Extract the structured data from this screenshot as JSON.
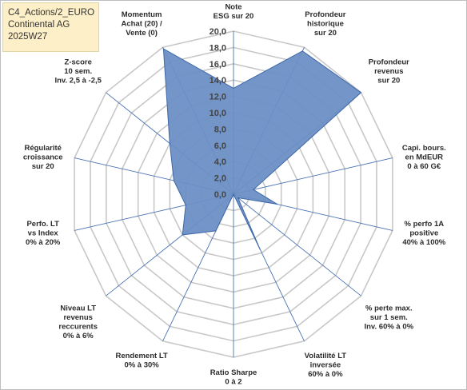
{
  "header": {
    "line1": "C4_Actions/2_EURO",
    "line2": "Continental AG",
    "line3": "2025W27"
  },
  "chart_data": {
    "type": "radar",
    "rmin": 0,
    "rmax": 20,
    "tick_step": 2,
    "tick_labels": [
      "0,0",
      "2,0",
      "4,0",
      "6,0",
      "8,0",
      "10,0",
      "12,0",
      "14,0",
      "16,0",
      "18,0",
      "20,0"
    ],
    "grid": true,
    "colors": {
      "fill": "#6b8fc4",
      "stroke": "#3f68a8",
      "grid": "#c8c8c8",
      "spoke": "#4a72b2"
    },
    "axes": [
      {
        "lines": [
          "Note",
          "ESG sur 20"
        ]
      },
      {
        "lines": [
          "Profondeur",
          "historique",
          "sur 20"
        ]
      },
      {
        "lines": [
          "Profondeur",
          "revenus",
          "sur 20"
        ]
      },
      {
        "lines": [
          "Capi. bours.",
          "en MdEUR",
          "0 à 60 G€"
        ]
      },
      {
        "lines": [
          "% perfo 1A",
          "positive",
          "40% à 100%"
        ]
      },
      {
        "lines": [
          "% perte max.",
          "sur 1 sem.",
          "Inv. 60% à 0%"
        ]
      },
      {
        "lines": [
          "Volatilité LT",
          "inversée",
          "60% à 0%"
        ]
      },
      {
        "lines": [
          "Ratio Sharpe",
          "0 à 2"
        ]
      },
      {
        "lines": [
          "Rendement LT",
          "0% à 30%"
        ]
      },
      {
        "lines": [
          "Niveau LT",
          "revenus",
          "reccurents",
          "0% à 6%"
        ]
      },
      {
        "lines": [
          "Perfo. LT",
          "vs Index",
          "0% à 20%"
        ]
      },
      {
        "lines": [
          "Régularité",
          "croissance",
          "sur 20"
        ]
      },
      {
        "lines": [
          "Z-score",
          "10 sem.",
          "Inv. 2,5 à -2,5"
        ]
      },
      {
        "lines": [
          "Momentum",
          "Achat (20) /",
          "Vente (0)"
        ]
      }
    ],
    "values": [
      13.0,
      19.5,
      20.0,
      2.5,
      5.5,
      0.7,
      7.5,
      0.0,
      5.0,
      8.0,
      6.0,
      7.5,
      10.0,
      19.8
    ]
  }
}
